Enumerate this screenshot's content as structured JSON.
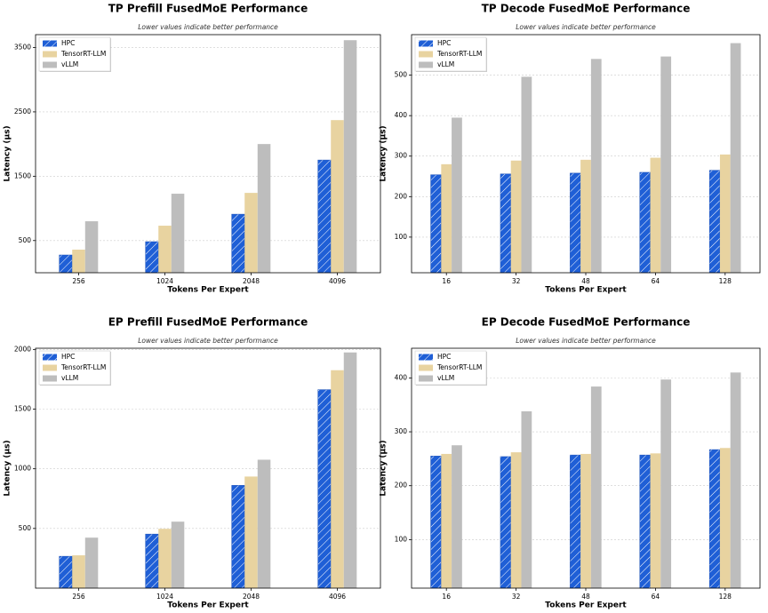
{
  "chart_data": [
    {
      "type": "bar",
      "title": "TP Prefill FusedMoE Performance",
      "subtitle": "Lower values indicate better performance",
      "xlabel": "Tokens Per Expert",
      "ylabel": "Latency (μs)",
      "categories": [
        "256",
        "1024",
        "2048",
        "4096"
      ],
      "series": [
        {
          "name": "HPC",
          "color": "#1f5fd6",
          "hatch": "//",
          "values": [
            276,
            483,
            910,
            1752
          ]
        },
        {
          "name": "TensorRT-LLM",
          "color": "#e8d3a0",
          "values": [
            359,
            731,
            1241,
            2372
          ]
        },
        {
          "name": "vLLM",
          "color": "#bdbdbd",
          "values": [
            800,
            1228,
            2000,
            3614
          ]
        }
      ],
      "ylim": [
        0,
        3700
      ],
      "yticks": [
        500,
        1500,
        2500,
        3500
      ],
      "grid": true,
      "legend": "upper left"
    },
    {
      "type": "bar",
      "title": "TP Decode FusedMoE Performance",
      "subtitle": "Lower values indicate better performance",
      "xlabel": "Tokens Per Expert",
      "ylabel": "Latency (μs)",
      "categories": [
        "16",
        "32",
        "48",
        "64",
        "128"
      ],
      "series": [
        {
          "name": "HPC",
          "color": "#1f5fd6",
          "hatch": "//",
          "values": [
            254,
            256,
            258,
            260,
            265
          ]
        },
        {
          "name": "TensorRT-LLM",
          "color": "#e8d3a0",
          "values": [
            280,
            289,
            291,
            296,
            304
          ]
        },
        {
          "name": "vLLM",
          "color": "#bdbdbd",
          "values": [
            395,
            496,
            540,
            546,
            579
          ]
        }
      ],
      "ylim": [
        12,
        600
      ],
      "yticks": [
        100,
        200,
        300,
        400,
        500
      ],
      "grid": true,
      "legend": "upper left"
    },
    {
      "type": "bar",
      "title": "EP Prefill FusedMoE Performance",
      "subtitle": "Lower values indicate better performance",
      "xlabel": "Tokens Per Expert",
      "ylabel": "Latency (μs)",
      "categories": [
        "256",
        "1024",
        "2048",
        "4096"
      ],
      "series": [
        {
          "name": "HPC",
          "color": "#1f5fd6",
          "hatch": "//",
          "values": [
            267,
            453,
            861,
            1663
          ]
        },
        {
          "name": "TensorRT-LLM",
          "color": "#e8d3a0",
          "values": [
            275,
            497,
            935,
            1826
          ]
        },
        {
          "name": "vLLM",
          "color": "#bdbdbd",
          "values": [
            423,
            557,
            1076,
            1975
          ]
        }
      ],
      "ylim": [
        0,
        2010
      ],
      "yticks": [
        500,
        1000,
        1500,
        2000
      ],
      "grid": true,
      "legend": "upper left"
    },
    {
      "type": "bar",
      "title": "EP Decode FusedMoE Performance",
      "subtitle": "Lower values indicate better performance",
      "xlabel": "Tokens Per Expert",
      "ylabel": "Latency (μs)",
      "categories": [
        "16",
        "32",
        "48",
        "64",
        "128"
      ],
      "series": [
        {
          "name": "HPC",
          "color": "#1f5fd6",
          "hatch": "//",
          "values": [
            255,
            254,
            257,
            257,
            267
          ]
        },
        {
          "name": "TensorRT-LLM",
          "color": "#e8d3a0",
          "values": [
            259,
            262,
            259,
            260,
            270
          ]
        },
        {
          "name": "vLLM",
          "color": "#bdbdbd",
          "values": [
            275,
            338,
            384,
            397,
            410
          ]
        }
      ],
      "ylim": [
        10,
        455
      ],
      "yticks": [
        100,
        200,
        300,
        400
      ],
      "grid": true,
      "legend": "upper left"
    }
  ]
}
